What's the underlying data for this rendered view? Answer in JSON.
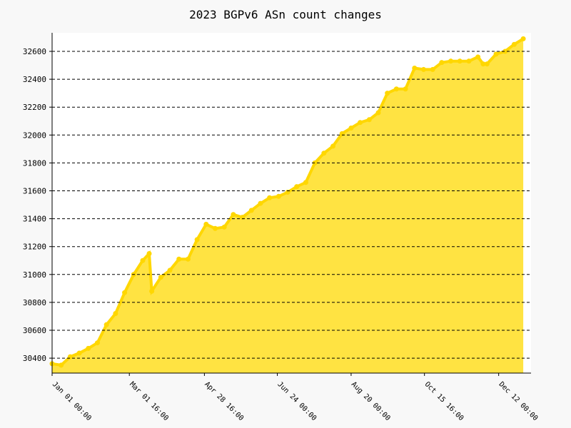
{
  "chart_data": {
    "type": "area",
    "title": "2023 BGPv6 ASn count changes",
    "x": [
      0,
      7,
      14,
      21,
      28,
      35,
      42,
      49,
      56,
      63,
      70,
      75,
      77,
      84,
      91,
      98,
      105,
      112,
      119,
      126,
      133,
      140,
      147,
      154,
      161,
      168,
      175,
      182,
      189,
      196,
      203,
      210,
      217,
      224,
      231,
      238,
      245,
      252,
      259,
      266,
      273,
      280,
      287,
      294,
      301,
      308,
      315,
      322,
      329,
      333,
      336,
      343,
      350,
      357,
      364
    ],
    "series": [
      {
        "name": "ASn count",
        "color": "#ffd700",
        "fill": "#ffe342",
        "values": [
          30360,
          30350,
          30410,
          30436,
          30470,
          30510,
          30640,
          30720,
          30870,
          31000,
          31100,
          31150,
          30880,
          30980,
          31030,
          31110,
          31110,
          31250,
          31360,
          31330,
          31340,
          31430,
          31410,
          31460,
          31510,
          31550,
          31560,
          31590,
          31630,
          31660,
          31800,
          31870,
          31920,
          32010,
          32050,
          32090,
          32110,
          32160,
          32300,
          32330,
          32330,
          32480,
          32470,
          32470,
          32520,
          32530,
          32530,
          32530,
          32560,
          32510,
          32510,
          32580,
          32600,
          32650,
          32690
        ]
      }
    ],
    "xlim": [
      0,
      370
    ],
    "xticks": [
      {
        "value": 0,
        "label": "Jan 01 00:00"
      },
      {
        "value": 59.667,
        "label": "Mar 01 16:00"
      },
      {
        "value": 117.667,
        "label": "Apr 28 16:00"
      },
      {
        "value": 174,
        "label": "Jun 24 00:00"
      },
      {
        "value": 231,
        "label": "Aug 20 00:00"
      },
      {
        "value": 287.667,
        "label": "Oct 15 16:00"
      },
      {
        "value": 345,
        "label": "Dec 12 00:00"
      }
    ],
    "ylim": [
      30293,
      32733
    ],
    "yticks": [
      30400,
      30600,
      30800,
      31000,
      31200,
      31400,
      31600,
      31800,
      32000,
      32200,
      32400,
      32600
    ],
    "grid": true
  }
}
